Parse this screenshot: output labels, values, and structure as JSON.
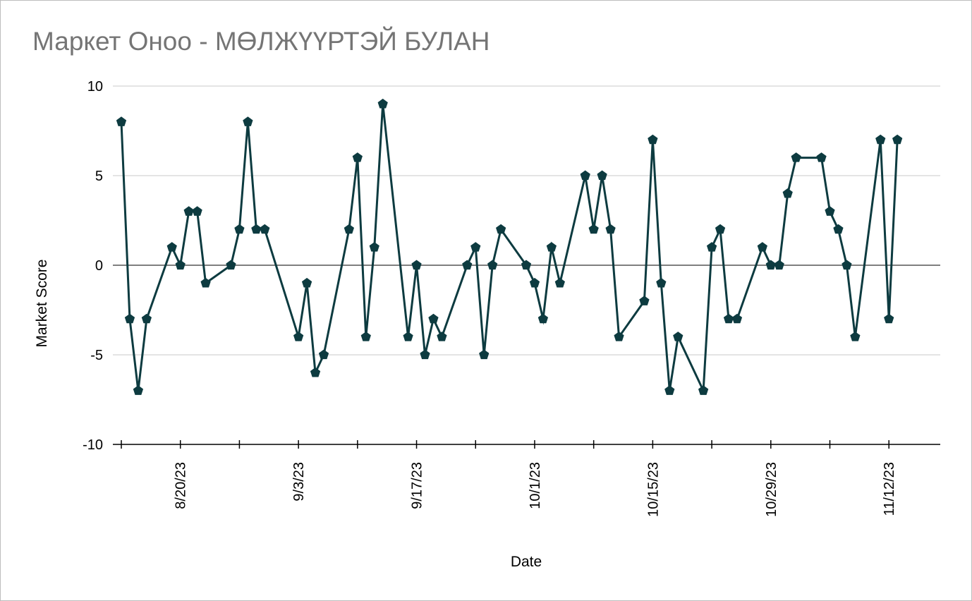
{
  "chart_data": {
    "type": "line",
    "title": "Маркет Оноо - МӨЛЖҮҮРТЭЙ БУЛАН",
    "xlabel": "Date",
    "ylabel": "Market Score",
    "ylim": [
      -10,
      10
    ],
    "y_ticks": [
      10,
      5,
      0,
      -5,
      -10
    ],
    "x_tick_labels": [
      "8/20/23",
      "9/3/23",
      "9/17/23",
      "10/1/23",
      "10/15/23",
      "10/29/23",
      "11/12/23"
    ],
    "x_tick_dates": [
      "2023-08-20",
      "2023-09-03",
      "2023-09-17",
      "2023-10-01",
      "2023-10-15",
      "2023-10-29",
      "2023-11-12"
    ],
    "xlim": [
      "2023-08-13",
      "2023-11-17"
    ],
    "grid": true,
    "legend": "none",
    "series": [
      {
        "color": "#0d3b40",
        "marker": "pentagon",
        "points": [
          {
            "x": "2023-08-13",
            "y": 8
          },
          {
            "x": "2023-08-14",
            "y": -3
          },
          {
            "x": "2023-08-15",
            "y": -7
          },
          {
            "x": "2023-08-16",
            "y": -3
          },
          {
            "x": "2023-08-19",
            "y": 1
          },
          {
            "x": "2023-08-20",
            "y": 0
          },
          {
            "x": "2023-08-21",
            "y": 3
          },
          {
            "x": "2023-08-22",
            "y": 3
          },
          {
            "x": "2023-08-23",
            "y": -1
          },
          {
            "x": "2023-08-26",
            "y": 0
          },
          {
            "x": "2023-08-27",
            "y": 2
          },
          {
            "x": "2023-08-28",
            "y": 8
          },
          {
            "x": "2023-08-29",
            "y": 2
          },
          {
            "x": "2023-08-30",
            "y": 2
          },
          {
            "x": "2023-09-03",
            "y": -4
          },
          {
            "x": "2023-09-04",
            "y": -1
          },
          {
            "x": "2023-09-05",
            "y": -6
          },
          {
            "x": "2023-09-06",
            "y": -5
          },
          {
            "x": "2023-09-09",
            "y": 2
          },
          {
            "x": "2023-09-10",
            "y": 6
          },
          {
            "x": "2023-09-11",
            "y": -4
          },
          {
            "x": "2023-09-12",
            "y": 1
          },
          {
            "x": "2023-09-13",
            "y": 9
          },
          {
            "x": "2023-09-16",
            "y": -4
          },
          {
            "x": "2023-09-17",
            "y": 0
          },
          {
            "x": "2023-09-18",
            "y": -5
          },
          {
            "x": "2023-09-19",
            "y": -3
          },
          {
            "x": "2023-09-20",
            "y": -4
          },
          {
            "x": "2023-09-23",
            "y": 0
          },
          {
            "x": "2023-09-24",
            "y": 1
          },
          {
            "x": "2023-09-25",
            "y": -5
          },
          {
            "x": "2023-09-26",
            "y": 0
          },
          {
            "x": "2023-09-27",
            "y": 2
          },
          {
            "x": "2023-09-30",
            "y": 0
          },
          {
            "x": "2023-10-01",
            "y": -1
          },
          {
            "x": "2023-10-02",
            "y": -3
          },
          {
            "x": "2023-10-03",
            "y": 1
          },
          {
            "x": "2023-10-04",
            "y": -1
          },
          {
            "x": "2023-10-07",
            "y": 5
          },
          {
            "x": "2023-10-08",
            "y": 2
          },
          {
            "x": "2023-10-09",
            "y": 5
          },
          {
            "x": "2023-10-10",
            "y": 2
          },
          {
            "x": "2023-10-11",
            "y": -4
          },
          {
            "x": "2023-10-14",
            "y": -2
          },
          {
            "x": "2023-10-15",
            "y": 7
          },
          {
            "x": "2023-10-16",
            "y": -1
          },
          {
            "x": "2023-10-17",
            "y": -7
          },
          {
            "x": "2023-10-18",
            "y": -4
          },
          {
            "x": "2023-10-21",
            "y": -7
          },
          {
            "x": "2023-10-22",
            "y": 1
          },
          {
            "x": "2023-10-23",
            "y": 2
          },
          {
            "x": "2023-10-24",
            "y": -3
          },
          {
            "x": "2023-10-25",
            "y": -3
          },
          {
            "x": "2023-10-28",
            "y": 1
          },
          {
            "x": "2023-10-29",
            "y": 0
          },
          {
            "x": "2023-10-30",
            "y": 0
          },
          {
            "x": "2023-10-31",
            "y": 4
          },
          {
            "x": "2023-11-01",
            "y": 6
          },
          {
            "x": "2023-11-04",
            "y": 6
          },
          {
            "x": "2023-11-05",
            "y": 3
          },
          {
            "x": "2023-11-06",
            "y": 2
          },
          {
            "x": "2023-11-07",
            "y": 0
          },
          {
            "x": "2023-11-08",
            "y": -4
          },
          {
            "x": "2023-11-11",
            "y": 7
          },
          {
            "x": "2023-11-12",
            "y": -3
          },
          {
            "x": "2023-11-13",
            "y": 7
          }
        ]
      }
    ]
  }
}
